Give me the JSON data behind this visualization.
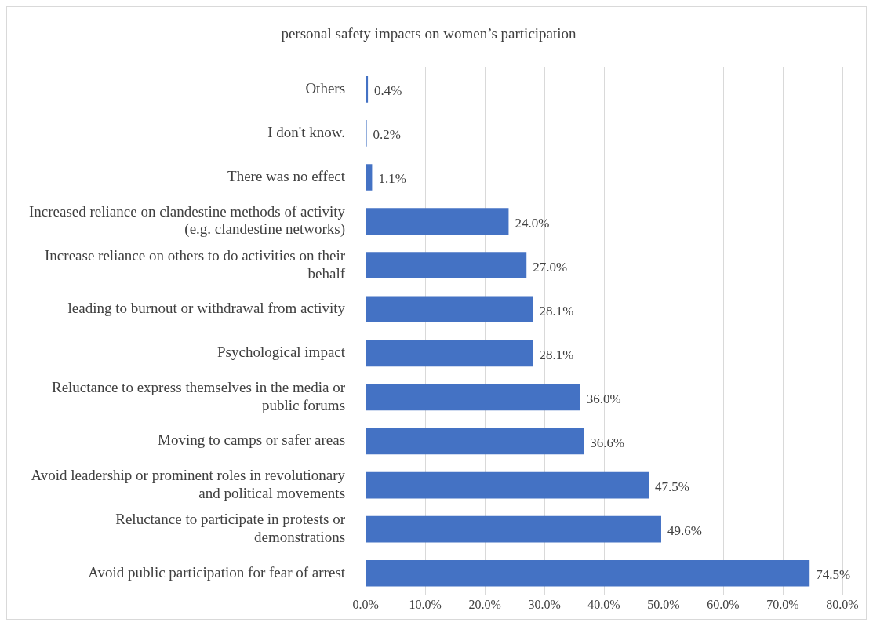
{
  "chart_data": {
    "type": "bar",
    "orientation": "horizontal",
    "title": "personal safety impacts on women’s participation",
    "categories": [
      "Others",
      "I don't know.",
      "There was no effect",
      "Increased reliance on clandestine methods of activity (e.g. clandestine networks)",
      "Increase reliance on others to do activities on their behalf",
      "leading to burnout or withdrawal from activity",
      "Psychological impact",
      "Reluctance to express themselves in the media or public forums",
      "Moving to camps or safer areas",
      "Avoid leadership or prominent roles in revolutionary and political movements",
      "Reluctance to participate in protests or demonstrations",
      "Avoid public participation for fear of arrest"
    ],
    "values": [
      0.4,
      0.2,
      1.1,
      24.0,
      27.0,
      28.1,
      28.1,
      36.0,
      36.6,
      47.5,
      49.6,
      74.5
    ],
    "value_labels": [
      "0.4%",
      "0.2%",
      "1.1%",
      "24.0%",
      "27.0%",
      "28.1%",
      "28.1%",
      "36.0%",
      "36.6%",
      "47.5%",
      "49.6%",
      "74.5%"
    ],
    "color": "#4472c4",
    "xlim": [
      0,
      80
    ],
    "xticks": [
      {
        "value": 0,
        "label": "0.0%"
      },
      {
        "value": 10,
        "label": "10.0%"
      },
      {
        "value": 20,
        "label": "20.0%"
      },
      {
        "value": 30,
        "label": "30.0%"
      },
      {
        "value": 40,
        "label": "40.0%"
      },
      {
        "value": 50,
        "label": "50.0%"
      },
      {
        "value": 60,
        "label": "60.0%"
      },
      {
        "value": 70,
        "label": "70.0%"
      },
      {
        "value": 80,
        "label": "80.0%"
      }
    ],
    "grid": "x",
    "legend": false
  }
}
